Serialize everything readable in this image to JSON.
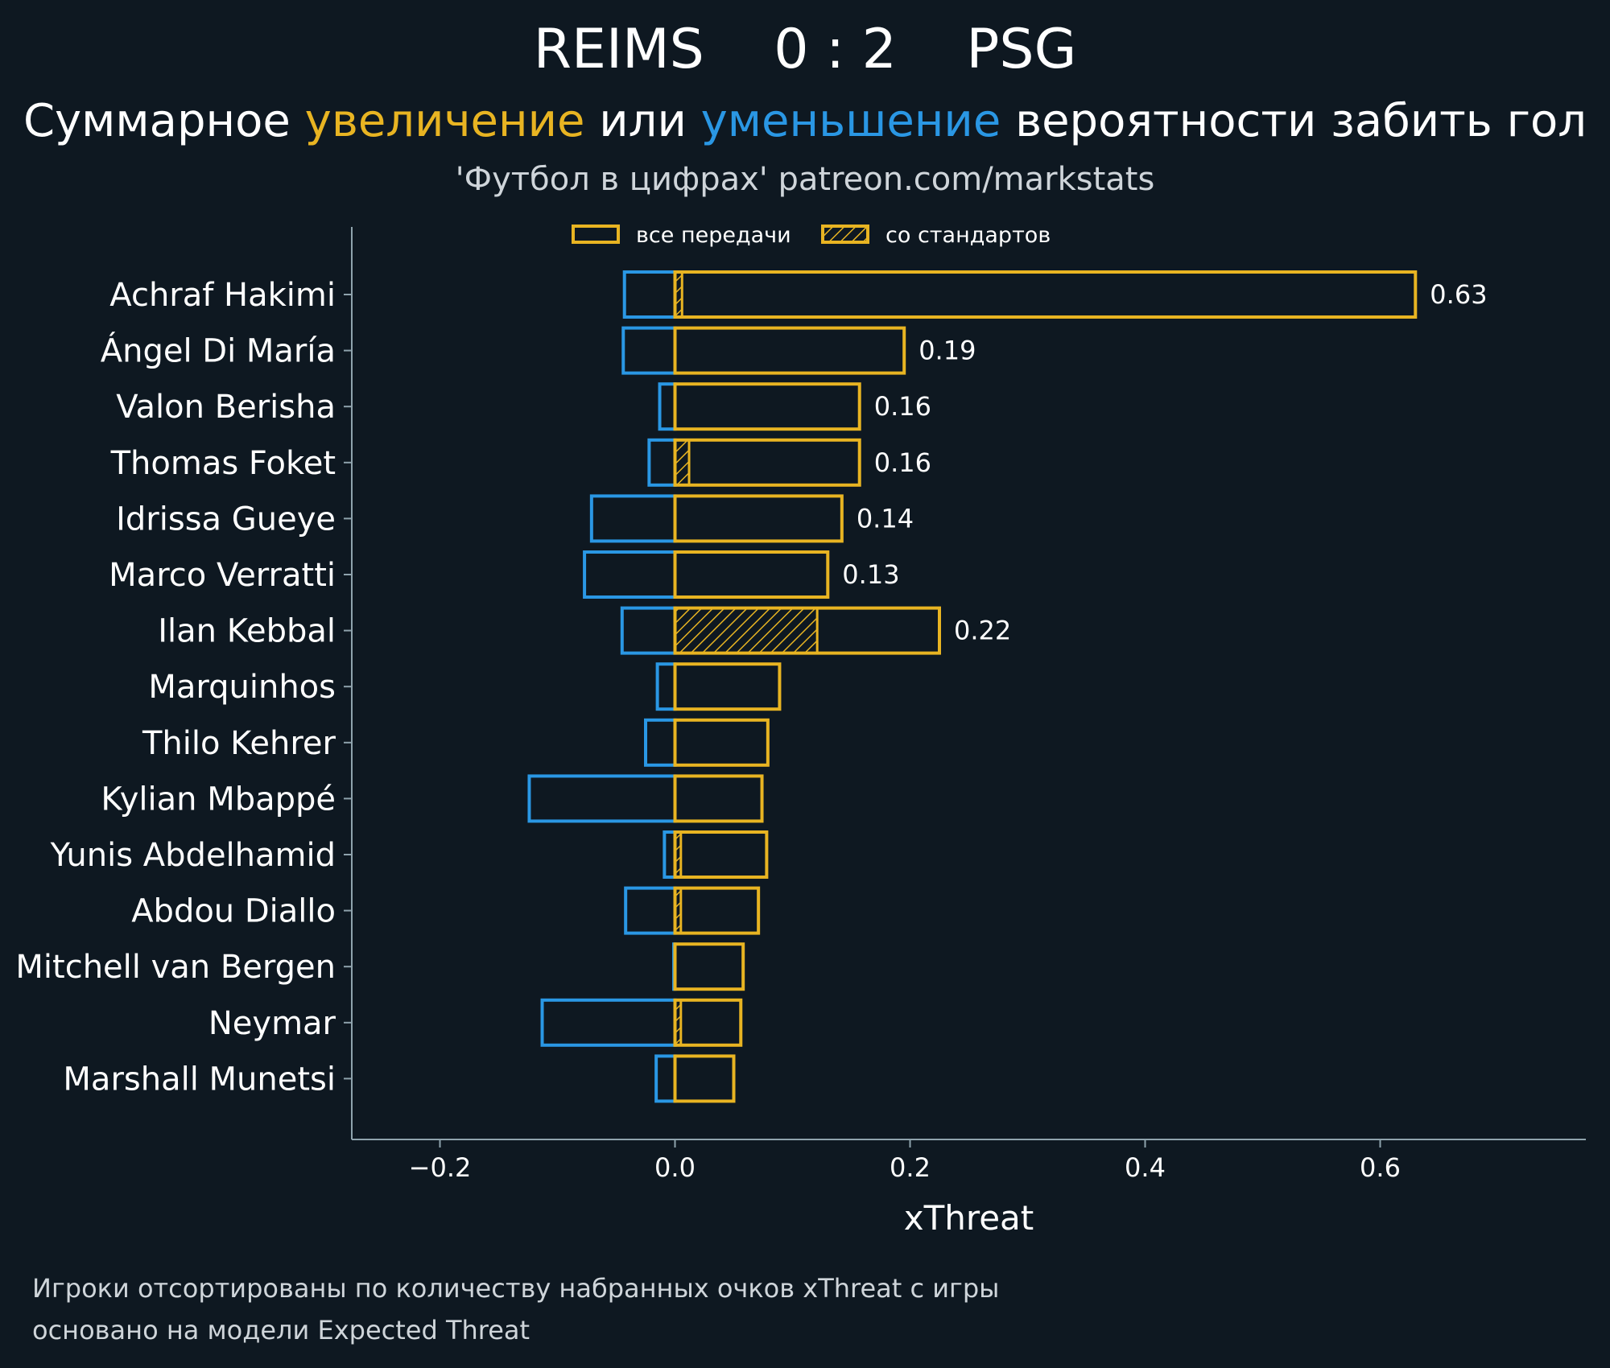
{
  "header": {
    "home_team": "REIMS",
    "score": "0 : 2",
    "away_team": "PSG",
    "subtitle_part1": "Суммарное ",
    "subtitle_increase": "увеличение",
    "subtitle_part2": " или ",
    "subtitle_decrease": "уменьшение",
    "subtitle_part3": " вероятности забить гол",
    "credit": "'Футбол в цифрах' patreon.com/markstats"
  },
  "footer": {
    "line1": "Игроки отсортированы по количеству набранных очков xThreat с игры",
    "line2": "основано на модели Expected Threat"
  },
  "colors": {
    "background": "#0e1821",
    "increase": "#e8b422",
    "decrease": "#2a97e4",
    "axis": "#8fa3ad",
    "text": "#ffffff"
  },
  "chart_data": {
    "type": "bar",
    "orientation": "horizontal",
    "xlabel": "xThreat",
    "xlim": [
      -0.275,
      0.775
    ],
    "xticks": [
      -0.2,
      0.0,
      0.2,
      0.4,
      0.6
    ],
    "xtick_labels": [
      "−0.2",
      "0.0",
      "0.2",
      "0.4",
      "0.6"
    ],
    "legend": {
      "position": "top-center",
      "all_passes": "все передачи",
      "set_pieces": "со стандартов"
    },
    "categories": [
      "Achraf Hakimi",
      "Ángel Di María",
      "Valon Berisha",
      "Thomas Foket",
      "Idrissa Gueye",
      "Marco Verratti",
      "Ilan Kebbal",
      "Marquinhos",
      "Thilo Kehrer",
      "Kylian Mbappé",
      "Yunis Abdelhamid",
      "Abdou Diallo",
      "Mitchell van Bergen",
      "Neymar",
      "Marshall Munetsi"
    ],
    "series": [
      {
        "name": "увеличение",
        "values": [
          0.63,
          0.195,
          0.157,
          0.157,
          0.142,
          0.13,
          0.225,
          0.089,
          0.079,
          0.074,
          0.078,
          0.071,
          0.058,
          0.056,
          0.05
        ]
      },
      {
        "name": "уменьшение",
        "values": [
          -0.043,
          -0.044,
          -0.013,
          -0.022,
          -0.071,
          -0.077,
          -0.045,
          -0.015,
          -0.025,
          -0.124,
          -0.009,
          -0.042,
          -0.001,
          -0.113,
          -0.016
        ]
      },
      {
        "name": "со стандартов",
        "values": [
          0.006,
          0.0,
          0.0,
          0.012,
          0.0,
          0.0,
          0.121,
          0.0,
          0.0,
          0.0,
          0.005,
          0.005,
          0.0,
          0.005,
          0.0
        ]
      }
    ],
    "data_labels": [
      "0.63",
      "0.19",
      "0.16",
      "0.16",
      "0.14",
      "0.13",
      "0.22",
      "",
      "",
      "",
      "",
      "",
      "",
      "",
      ""
    ]
  }
}
